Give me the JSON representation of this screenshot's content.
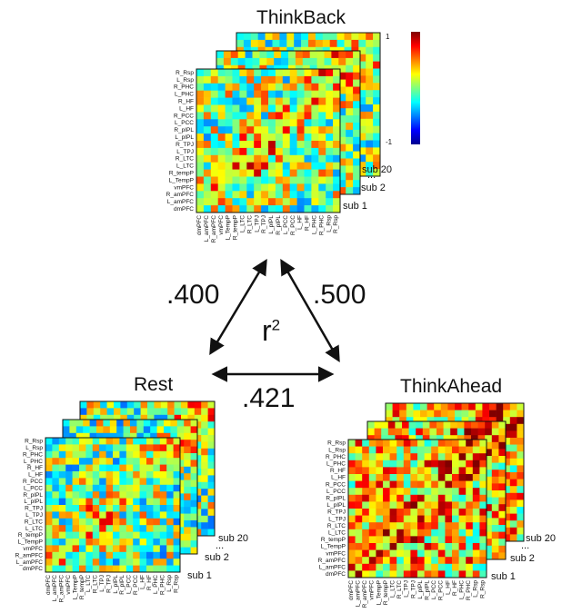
{
  "regions": [
    "dmPFC",
    "L_amPFC",
    "R_amPFC",
    "vmPFC",
    "L_TempP",
    "R_tempP",
    "L_LTC",
    "R_LTC",
    "L_TPJ",
    "R_TPJ",
    "L_pIPL",
    "R_pIPL",
    "L_PCC",
    "R_PCC",
    "L_HF",
    "R_HF",
    "L_PHC",
    "R_PHC",
    "L_Rsp",
    "R_Rsp"
  ],
  "colorbar": {
    "max_label": "1",
    "min_label": "-1"
  },
  "conditions": {
    "thinkback": {
      "title": "ThinkBack",
      "y_labels": [
        "R_Rsp",
        "L_Rsp",
        "R_PHC",
        "L_PHC",
        "R_HF",
        "L_HF",
        "R_PCC",
        "L_PCC",
        "R_pIPL",
        "L_pIPL",
        "R_TPJ",
        "L_TPJ",
        "R_LTC",
        "L_LTC",
        "R_tempP",
        "L_TempP",
        "vmPFC",
        "R_amPFC",
        "L_amPFC",
        "dmPFC"
      ],
      "x_labels": [
        "dmPFC",
        "L_amPFC",
        "R_amPFC",
        "vmPFC",
        "L_TempP",
        "R_tempP",
        "L_LTC",
        "R_LTC",
        "L_TPJ",
        "R_TPJ",
        "L_pIPL",
        "R_pIPL",
        "L_PCC",
        "R_PCC",
        "L_HF",
        "R_HF",
        "L_PHC",
        "R_PHC",
        "L_Rsp",
        "R_Rsp"
      ],
      "stack_labels": [
        "sub 1",
        "sub 2",
        "...",
        "sub 20"
      ]
    },
    "rest": {
      "title": "Rest",
      "y_labels": [
        "R_Rsp",
        "L_Rsp",
        "R_PHC",
        "L_PHC",
        "R_HF",
        "L_HF",
        "R_PCC",
        "L_PCC",
        "R_pIPL",
        "L_pIPL",
        "R_TPJ",
        "L_TPJ",
        "R_LTC",
        "L_LTC",
        "R_tempP",
        "L_TempP",
        "vmPFC",
        "R_amPFC",
        "L_amPFC",
        "dmPFC"
      ],
      "x_labels": [
        "dmPFC",
        "L_amPFC",
        "R_amPFC",
        "vmPFC",
        "L_TempP",
        "R_tempP",
        "L_LTC",
        "R_LTC",
        "L_TPJ",
        "R_TPJ",
        "L_pIPL",
        "R_pIPL",
        "L_PCC",
        "R_PCC",
        "L_HF",
        "R_HF",
        "L_PHC",
        "R_PHC",
        "L_Rsp",
        "R_Rsp"
      ],
      "stack_labels": [
        "sub 1",
        "sub 2",
        "...",
        "sub 20"
      ]
    },
    "thinkahead": {
      "title": "ThinkAhead",
      "y_labels": [
        "R_Rsp",
        "L_Rsp",
        "R_PHC",
        "L_PHC",
        "R_HF",
        "L_HF",
        "R_PCC",
        "L_PCC",
        "R_pIPL",
        "L_pIPL",
        "R_TPJ",
        "L_TPJ",
        "R_LTC",
        "L_LTC",
        "R_tempP",
        "L_TempP",
        "vmPFC",
        "R_amPFC",
        "L_amPFC",
        "dmPFC"
      ],
      "x_labels": [
        "dmPFC",
        "L_amPFC",
        "R_amPFC",
        "vmPFC",
        "L_TempP",
        "R_tempP",
        "L_LTC",
        "R_LTC",
        "L_TPJ",
        "R_TPJ",
        "L_pIPL",
        "R_pIPL",
        "L_PCC",
        "R_PCC",
        "L_HF",
        "R_HF",
        "L_PHC",
        "R_PHC",
        "L_Rsp",
        "R_Rsp"
      ],
      "stack_labels": [
        "sub 1",
        "sub 2",
        "...",
        "sub 20"
      ]
    }
  },
  "similarity": {
    "symbol": "r",
    "exponent": "2",
    "thinkback_rest": ".400",
    "thinkback_thinkahead": ".500",
    "rest_thinkahead": ".421"
  }
}
